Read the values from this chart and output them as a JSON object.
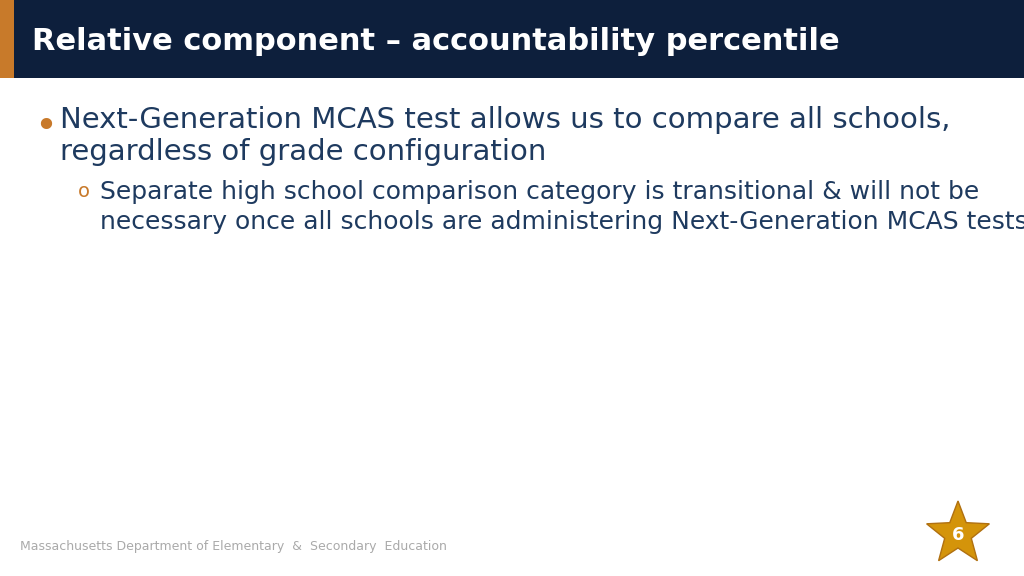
{
  "title": "Relative component – accountability percentile",
  "title_bg_color": "#0d1f3c",
  "title_text_color": "#ffffff",
  "accent_bar_color": "#c87a2a",
  "body_bg_color": "#ffffff",
  "bullet_color": "#c8792a",
  "text_color": "#1e3a5f",
  "sub_bullet_color": "#c8792a",
  "bullet1_line1": "Next-Generation MCAS test allows us to compare all schools,",
  "bullet1_line2": "regardless of grade configuration",
  "sub_bullet1_line1": "Separate high school comparison category is transitional & will not be",
  "sub_bullet1_line2": "necessary once all schools are administering Next-Generation MCAS tests",
  "footer_text": "Massachusetts Department of Elementary  &  Secondary  Education",
  "footer_color": "#aaaaaa",
  "page_number": "6",
  "star_color": "#d4940a",
  "star_edge_color": "#b07010",
  "title_bar_height": 78,
  "accent_bar_width": 14,
  "title_fontsize": 22,
  "bullet_fontsize": 28,
  "body_fontsize": 21,
  "sub_fontsize": 18,
  "footer_fontsize": 9
}
